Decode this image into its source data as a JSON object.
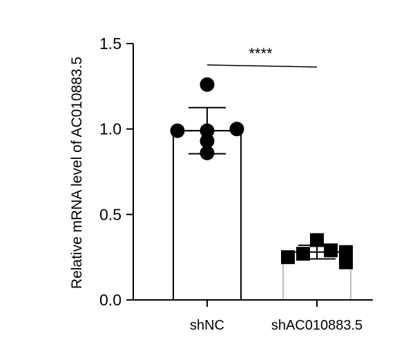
{
  "chart_data": {
    "type": "bar",
    "title": "",
    "xlabel": "",
    "ylabel": "Relative mRNA level of AC010883.5",
    "ylim": [
      0,
      1.5
    ],
    "yticks": [
      "0.0",
      "0.5",
      "1.0",
      "1.5"
    ],
    "grid": false,
    "legend": "none",
    "categories": [
      "shNC",
      "shAC010883.5"
    ],
    "values": [
      0.99,
      0.28
    ],
    "error": [
      0.135,
      0.04
    ],
    "points": [
      {
        "category": "shNC",
        "marker": "circle",
        "values": [
          1.26,
          0.99,
          0.99,
          1.0,
          0.93,
          0.86
        ]
      },
      {
        "category": "shAC010883.5",
        "marker": "square",
        "values": [
          0.25,
          0.35,
          0.27,
          0.29,
          0.28,
          0.22
        ]
      }
    ],
    "bar_edge_colors": [
      "#000000",
      "#bdbdbd"
    ],
    "marker_color": "#000000",
    "annotations": [
      {
        "text": "****",
        "between": [
          "shNC",
          "shAC010883.5"
        ]
      }
    ]
  }
}
